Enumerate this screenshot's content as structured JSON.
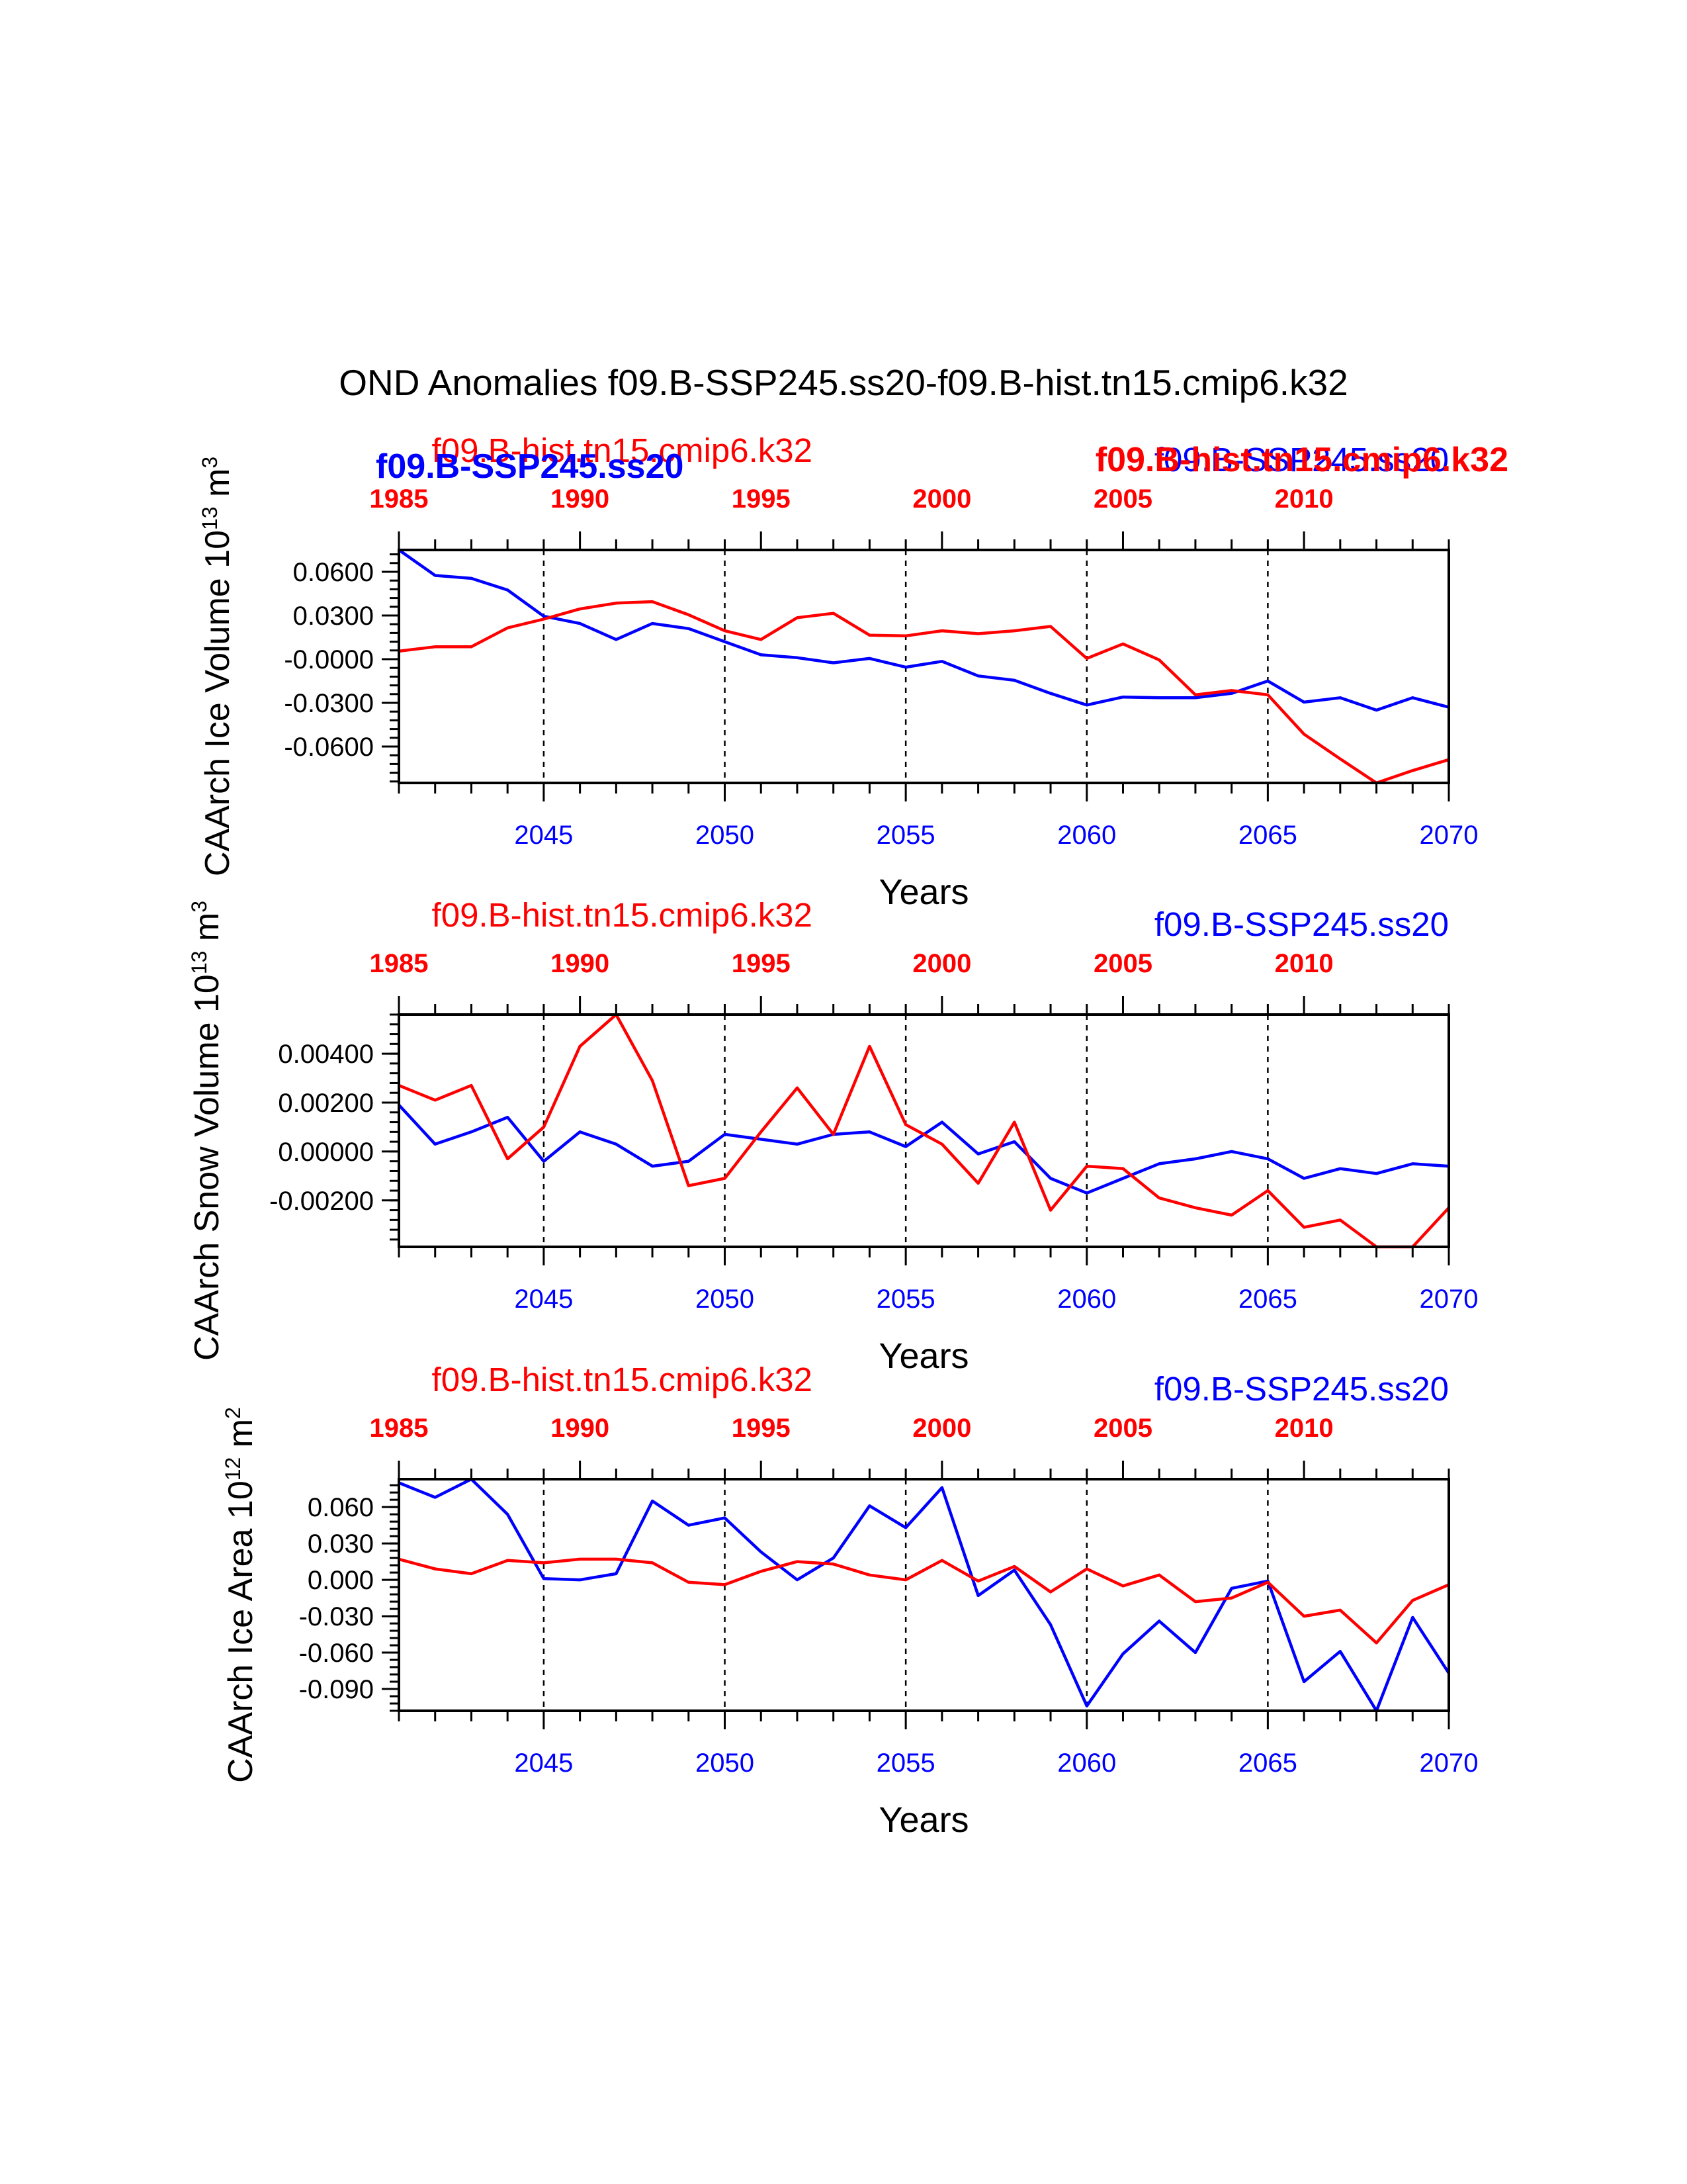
{
  "title": "OND Anomalies f09.B-SSP245.ss20-f09.B-hist.tn15.cmip6.k32",
  "colors": {
    "ssp": "#0000ff",
    "hist": "#ff0000",
    "axis": "#000000"
  },
  "chart_data": [
    {
      "type": "line",
      "ylabel_main": "CAArch Ice Volume 10",
      "ylabel_exp": "13",
      "ylabel_unit": " m",
      "ylabel_unit_exp": "3",
      "xlabel": "Years",
      "hist_label": "f09.B-hist.tn15.cmip6.k32",
      "ssp_label": "f09.B-SSP245.ss20",
      "overlap_labels": {
        "ssp_bold": "f09.B-SSP245.ss20",
        "hist_bold": "f09.B-hist.tn15.cmip6.k32"
      },
      "bottom_ticks": [
        "2045",
        "2050",
        "2055",
        "2060",
        "2065",
        "2070"
      ],
      "top_ticks": [
        "1985",
        "1990",
        "1995",
        "2000",
        "2005",
        "2010"
      ],
      "yticks": [
        0.06,
        0.03,
        0.0,
        -0.03,
        -0.06
      ],
      "ytick_labels": [
        "0.0600",
        "0.0300",
        "-0.0000",
        "-0.0300",
        "-0.0600"
      ],
      "ylim": [
        -0.085,
        0.075
      ],
      "xlim": [
        2041,
        2070
      ],
      "x": [
        2041,
        2042,
        2043,
        2044,
        2045,
        2046,
        2047,
        2048,
        2049,
        2050,
        2051,
        2052,
        2053,
        2054,
        2055,
        2056,
        2057,
        2058,
        2059,
        2060,
        2061,
        2062,
        2063,
        2064,
        2065,
        2066,
        2067,
        2068,
        2069,
        2070
      ],
      "series": [
        {
          "name": "f09.B-SSP245.ss20",
          "color": "#0000ff",
          "values": [
            0.075,
            0.0575,
            0.0555,
            0.0475,
            0.0295,
            0.0245,
            0.0135,
            0.0245,
            0.021,
            0.012,
            0.003,
            0.001,
            -0.0025,
            0.0005,
            -0.0055,
            -0.0015,
            -0.0115,
            -0.0145,
            -0.0235,
            -0.0315,
            -0.026,
            -0.0265,
            -0.0265,
            -0.0235,
            -0.015,
            -0.0295,
            -0.0265,
            -0.035,
            -0.0265,
            -0.033
          ]
        },
        {
          "name": "f09.B-hist.tn15.cmip6.k32",
          "color": "#ff0000",
          "values": [
            0.0055,
            0.0085,
            0.0085,
            0.0215,
            0.0275,
            0.0345,
            0.0385,
            0.0395,
            0.0305,
            0.0195,
            0.0135,
            0.0285,
            0.0315,
            0.0165,
            0.016,
            0.0195,
            0.0175,
            0.0195,
            0.0225,
            0.0005,
            0.0105,
            -0.0005,
            -0.0245,
            -0.0215,
            -0.0245,
            -0.0515,
            -0.0685,
            -0.085,
            -0.0765,
            -0.069
          ]
        }
      ]
    },
    {
      "type": "line",
      "ylabel_main": "CAArch Snow Volume 10",
      "ylabel_exp": "13",
      "ylabel_unit": " m",
      "ylabel_unit_exp": "3",
      "xlabel": "Years",
      "hist_label": "f09.B-hist.tn15.cmip6.k32",
      "ssp_label": "f09.B-SSP245.ss20",
      "bottom_ticks": [
        "2045",
        "2050",
        "2055",
        "2060",
        "2065",
        "2070"
      ],
      "top_ticks": [
        "1985",
        "1990",
        "1995",
        "2000",
        "2005",
        "2010"
      ],
      "yticks": [
        0.004,
        0.002,
        0.0,
        -0.002
      ],
      "ytick_labels": [
        "0.00400",
        "0.00200",
        "0.00000",
        "-0.00200"
      ],
      "ylim": [
        -0.0039,
        0.0056
      ],
      "xlim": [
        2041,
        2070
      ],
      "x": [
        2041,
        2042,
        2043,
        2044,
        2045,
        2046,
        2047,
        2048,
        2049,
        2050,
        2051,
        2052,
        2053,
        2054,
        2055,
        2056,
        2057,
        2058,
        2059,
        2060,
        2061,
        2062,
        2063,
        2064,
        2065,
        2066,
        2067,
        2068,
        2069,
        2070
      ],
      "series": [
        {
          "name": "f09.B-SSP245.ss20",
          "color": "#0000ff",
          "values": [
            0.0019,
            0.0003,
            0.0008,
            0.0014,
            -0.0004,
            0.0008,
            0.0003,
            -0.0006,
            -0.0004,
            0.0007,
            0.0005,
            0.0003,
            0.0007,
            0.0008,
            0.0002,
            0.0012,
            -0.0001,
            0.0004,
            -0.0011,
            -0.0017,
            -0.0011,
            -0.0005,
            -0.0003,
            0.0,
            -0.0003,
            -0.0011,
            -0.0007,
            -0.0009,
            -0.0005,
            -0.0006
          ]
        },
        {
          "name": "f09.B-hist.tn15.cmip6.k32",
          "color": "#ff0000",
          "values": [
            0.0027,
            0.0021,
            0.0027,
            -0.0003,
            0.001,
            0.0043,
            0.0056,
            0.0029,
            -0.0014,
            -0.0011,
            0.0008,
            0.0026,
            0.0007,
            0.0043,
            0.0011,
            0.0003,
            -0.0013,
            0.0012,
            -0.0024,
            -0.0006,
            -0.0007,
            -0.0019,
            -0.0023,
            -0.0026,
            -0.0016,
            -0.0031,
            -0.0028,
            -0.0039,
            -0.0039,
            -0.0023
          ]
        }
      ]
    },
    {
      "type": "line",
      "ylabel_main": "CAArch Ice Area 10",
      "ylabel_exp": "12",
      "ylabel_unit": " m",
      "ylabel_unit_exp": "2",
      "xlabel": "Years",
      "hist_label": "f09.B-hist.tn15.cmip6.k32",
      "ssp_label": "f09.B-SSP245.ss20",
      "bottom_ticks": [
        "2045",
        "2050",
        "2055",
        "2060",
        "2065",
        "2070"
      ],
      "top_ticks": [
        "1985",
        "1990",
        "1995",
        "2000",
        "2005",
        "2010"
      ],
      "yticks": [
        0.06,
        0.03,
        0.0,
        -0.03,
        -0.06,
        -0.09
      ],
      "ytick_labels": [
        "0.060",
        "0.030",
        "0.000",
        "-0.030",
        "-0.060",
        "-0.090"
      ],
      "ylim": [
        -0.108,
        0.083
      ],
      "xlim": [
        2041,
        2070
      ],
      "x": [
        2041,
        2042,
        2043,
        2044,
        2045,
        2046,
        2047,
        2048,
        2049,
        2050,
        2051,
        2052,
        2053,
        2054,
        2055,
        2056,
        2057,
        2058,
        2059,
        2060,
        2061,
        2062,
        2063,
        2064,
        2065,
        2066,
        2067,
        2068,
        2069,
        2070
      ],
      "series": [
        {
          "name": "f09.B-SSP245.ss20",
          "color": "#0000ff",
          "values": [
            0.08,
            0.068,
            0.083,
            0.054,
            0.001,
            0.0,
            0.005,
            0.065,
            0.045,
            0.051,
            0.023,
            0.0,
            0.018,
            0.061,
            0.043,
            0.076,
            -0.013,
            0.008,
            -0.037,
            -0.104,
            -0.061,
            -0.034,
            -0.06,
            -0.007,
            -0.001,
            -0.084,
            -0.059,
            -0.108,
            -0.031,
            -0.077
          ]
        },
        {
          "name": "f09.B-hist.tn15.cmip6.k32",
          "color": "#ff0000",
          "values": [
            0.017,
            0.009,
            0.005,
            0.016,
            0.014,
            0.017,
            0.017,
            0.014,
            -0.002,
            -0.004,
            0.007,
            0.015,
            0.013,
            0.004,
            0.0,
            0.016,
            -0.001,
            0.011,
            -0.01,
            0.009,
            -0.005,
            0.004,
            -0.018,
            -0.015,
            -0.002,
            -0.03,
            -0.025,
            -0.052,
            -0.017,
            -0.004
          ]
        }
      ]
    }
  ]
}
